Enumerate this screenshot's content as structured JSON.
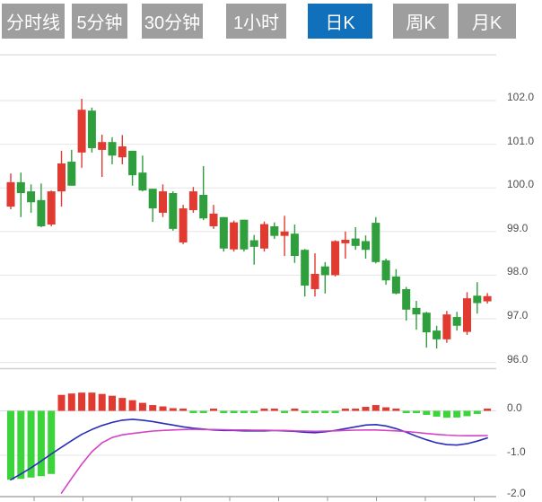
{
  "toolbar": {
    "tabs": [
      {
        "label": "分时线",
        "active": false
      },
      {
        "label": "5分钟",
        "active": false
      },
      {
        "label": "30分钟",
        "active": false
      },
      {
        "label": "1小时",
        "active": false
      },
      {
        "label": "日K",
        "active": true
      },
      {
        "label": "周K",
        "active": false
      },
      {
        "label": "月K",
        "active": false
      }
    ],
    "active_bg": "#1170bb",
    "inactive_bg": "#9e9e9e",
    "text_color": "#ffffff"
  },
  "chart_data": {
    "type": "candlestick",
    "subpanels": [
      "price-kline",
      "macd"
    ],
    "title": "",
    "price_axis": {
      "side": "right",
      "labels": [
        "102.0",
        "101.0",
        "100.0",
        "99.0",
        "98.0",
        "97.0",
        "96.0"
      ],
      "values": [
        102.0,
        101.0,
        100.0,
        99.0,
        98.0,
        97.0,
        96.0
      ]
    },
    "macd_axis": {
      "side": "right",
      "labels": [
        "0.0",
        "-1.0",
        "-2.0"
      ],
      "values": [
        0.0,
        -1.0,
        -2.0
      ]
    },
    "grid": true,
    "legend": false,
    "candles_ohlc_note": "arrays are [open,high,low,close]; red=close>=open(up), green=down",
    "candles": [
      [
        99.57,
        100.33,
        99.51,
        100.13
      ],
      [
        100.13,
        100.35,
        99.33,
        99.88
      ],
      [
        99.92,
        100.08,
        99.43,
        99.67
      ],
      [
        99.72,
        100.1,
        99.1,
        99.12
      ],
      [
        99.16,
        99.94,
        99.12,
        99.92
      ],
      [
        99.92,
        100.85,
        99.57,
        100.56
      ],
      [
        100.6,
        100.87,
        100.05,
        100.05
      ],
      [
        100.81,
        102.04,
        100.46,
        101.79
      ],
      [
        101.77,
        101.84,
        100.81,
        100.91
      ],
      [
        100.87,
        101.22,
        100.25,
        101.05
      ],
      [
        101.05,
        101.16,
        100.54,
        100.74
      ],
      [
        100.7,
        101.21,
        100.54,
        100.95
      ],
      [
        100.85,
        100.85,
        100.05,
        100.29
      ],
      [
        100.35,
        100.74,
        99.92,
        99.94
      ],
      [
        99.98,
        99.98,
        99.22,
        99.53
      ],
      [
        99.43,
        100.08,
        99.33,
        99.92
      ],
      [
        99.88,
        99.92,
        99.02,
        99.06
      ],
      [
        98.75,
        99.61,
        98.71,
        99.53
      ],
      [
        99.49,
        100.02,
        99.43,
        99.92
      ],
      [
        99.84,
        100.5,
        99.26,
        99.3
      ],
      [
        99.12,
        99.61,
        99.06,
        99.41
      ],
      [
        99.33,
        99.33,
        98.54,
        98.61
      ],
      [
        98.59,
        99.25,
        98.54,
        99.21
      ],
      [
        99.27,
        99.27,
        98.54,
        98.59
      ],
      [
        98.8,
        98.92,
        98.24,
        98.65
      ],
      [
        98.61,
        99.23,
        98.54,
        99.17
      ],
      [
        99.12,
        99.21,
        98.83,
        98.9
      ],
      [
        98.9,
        99.36,
        98.44,
        99.0
      ],
      [
        98.95,
        99.16,
        98.28,
        98.44
      ],
      [
        98.58,
        98.6,
        97.51,
        97.76
      ],
      [
        97.68,
        98.5,
        97.51,
        98.03
      ],
      [
        98.2,
        98.3,
        97.58,
        98.0
      ],
      [
        98.0,
        98.8,
        97.97,
        98.78
      ],
      [
        98.73,
        99.0,
        98.38,
        98.81
      ],
      [
        98.84,
        99.1,
        98.58,
        98.67
      ],
      [
        98.78,
        98.91,
        98.38,
        98.58
      ],
      [
        99.2,
        99.33,
        98.27,
        98.3
      ],
      [
        98.34,
        98.38,
        97.78,
        97.88
      ],
      [
        97.97,
        98.14,
        97.56,
        97.58
      ],
      [
        97.68,
        97.73,
        96.96,
        97.21
      ],
      [
        97.25,
        97.41,
        96.75,
        97.1
      ],
      [
        97.14,
        97.16,
        96.34,
        96.69
      ],
      [
        96.73,
        96.84,
        96.32,
        96.53
      ],
      [
        96.53,
        97.18,
        96.45,
        97.1
      ],
      [
        97.04,
        97.16,
        96.73,
        96.84
      ],
      [
        96.7,
        97.61,
        96.63,
        97.47
      ],
      [
        97.53,
        97.84,
        97.12,
        97.36
      ],
      [
        97.4,
        97.59,
        97.35,
        97.52
      ]
    ],
    "macd": {
      "histogram": [
        -1.55,
        -1.53,
        -1.5,
        -1.47,
        -1.42,
        0.36,
        0.39,
        0.41,
        0.41,
        0.38,
        0.34,
        0.29,
        0.24,
        0.18,
        0.13,
        0.1,
        0.06,
        0.02,
        -0.03,
        -0.04,
        0.02,
        -0.03,
        -0.035,
        -0.035,
        -0.03,
        0.02,
        0.02,
        -0.02,
        0.02,
        -0.01,
        -0.025,
        -0.03,
        -0.03,
        0.03,
        0.05,
        0.09,
        0.13,
        0.08,
        0.03,
        -0.02,
        -0.05,
        -0.09,
        -0.13,
        -0.155,
        -0.15,
        -0.12,
        -0.07,
        0.02
      ],
      "histogram_colors": [
        "g",
        "g",
        "g",
        "g",
        "g",
        "r",
        "r",
        "r",
        "r",
        "r",
        "r",
        "r",
        "r",
        "r",
        "r",
        "r",
        "r",
        "r",
        "g",
        "g",
        "r",
        "g",
        "g",
        "g",
        "g",
        "r",
        "r",
        "g",
        "r",
        "g",
        "g",
        "g",
        "g",
        "r",
        "r",
        "r",
        "r",
        "r",
        "r",
        "g",
        "g",
        "g",
        "g",
        "g",
        "g",
        "g",
        "g",
        "r"
      ],
      "diff_line": [
        -1.55,
        -1.42,
        -1.28,
        -1.13,
        -0.97,
        -0.82,
        -0.67,
        -0.53,
        -0.42,
        -0.33,
        -0.26,
        -0.21,
        -0.19,
        -0.21,
        -0.24,
        -0.28,
        -0.32,
        -0.36,
        -0.39,
        -0.41,
        -0.43,
        -0.44,
        -0.44,
        -0.45,
        -0.45,
        -0.45,
        -0.44,
        -0.45,
        -0.46,
        -0.48,
        -0.49,
        -0.47,
        -0.44,
        -0.4,
        -0.36,
        -0.32,
        -0.31,
        -0.34,
        -0.4,
        -0.48,
        -0.57,
        -0.65,
        -0.72,
        -0.76,
        -0.77,
        -0.74,
        -0.68,
        -0.61
      ],
      "dea_line": [
        null,
        null,
        null,
        null,
        null,
        -1.85,
        -1.52,
        -1.2,
        -0.92,
        -0.72,
        -0.6,
        -0.54,
        -0.51,
        -0.48,
        -0.455,
        -0.44,
        -0.43,
        -0.42,
        -0.415,
        -0.42,
        -0.42,
        -0.425,
        -0.43,
        -0.43,
        -0.435,
        -0.435,
        -0.44,
        -0.44,
        -0.45,
        -0.455,
        -0.46,
        -0.455,
        -0.45,
        -0.44,
        -0.435,
        -0.43,
        -0.43,
        -0.44,
        -0.45,
        -0.465,
        -0.485,
        -0.51,
        -0.53,
        -0.545,
        -0.555,
        -0.56,
        -0.56,
        -0.555
      ]
    },
    "colors": {
      "up_candle": "#e13a30",
      "down_candle": "#2f9e3c",
      "macd_up_bar": "#e13a30",
      "macd_down_bar": "#3bd53b",
      "diff_line": "#2a2eb8",
      "dea_line": "#d343c3",
      "gridline": "#e5e5e5",
      "border": "#d0d0d0",
      "axis_text": "#4f4f4f",
      "tick": "#999999"
    }
  }
}
